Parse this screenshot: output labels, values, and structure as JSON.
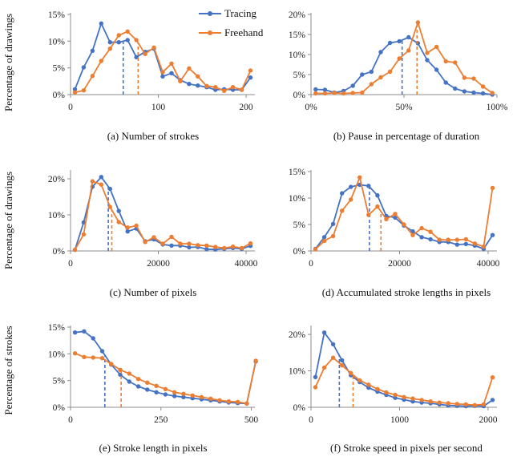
{
  "colors": {
    "tracing": "#4472C4",
    "freehand": "#ED7D31",
    "axis": "#8c8c8c"
  },
  "legend": {
    "tracing": "Tracing",
    "freehand": "Freehand"
  },
  "y_axis_labels": {
    "drawings": "Percentage of drawings",
    "strokes": "Percentage of strokes"
  },
  "chart_data": [
    {
      "type": "line",
      "caption": "(a) Number of strokes",
      "xlim": [
        0,
        210
      ],
      "ylim": [
        0,
        15
      ],
      "xticks": [
        0,
        100,
        200
      ],
      "xtick_labels": [
        "0",
        "100",
        "200"
      ],
      "yticks": [
        0,
        5,
        10,
        15
      ],
      "ytick_labels": [
        "0%",
        "5%",
        "10%",
        "15%"
      ],
      "series": [
        {
          "name": "Tracing",
          "x": [
            5,
            15,
            25,
            35,
            45,
            55,
            65,
            75,
            85,
            95,
            105,
            115,
            125,
            135,
            145,
            155,
            165,
            175,
            185,
            195,
            205
          ],
          "y": [
            1.0,
            5.1,
            8.2,
            13.3,
            9.8,
            9.8,
            10.2,
            7.0,
            8.0,
            8.6,
            3.4,
            4.0,
            2.7,
            2.0,
            1.7,
            1.4,
            0.9,
            1.0,
            0.9,
            0.9,
            3.2
          ],
          "median": 60
        },
        {
          "name": "Freehand",
          "x": [
            5,
            15,
            25,
            35,
            45,
            55,
            65,
            75,
            85,
            95,
            105,
            115,
            125,
            135,
            145,
            155,
            165,
            175,
            185,
            195,
            205
          ],
          "y": [
            0.4,
            0.8,
            3.5,
            6.3,
            8.6,
            11.1,
            11.8,
            10.2,
            7.6,
            8.8,
            4.2,
            5.8,
            2.5,
            4.9,
            3.4,
            1.6,
            1.4,
            0.7,
            1.4,
            0.9,
            4.5
          ],
          "median": 77
        }
      ]
    },
    {
      "type": "line",
      "caption": "(b) Pause in percentage of duration",
      "xlim": [
        0,
        100
      ],
      "ylim": [
        0,
        20
      ],
      "xticks": [
        0,
        50,
        100
      ],
      "xtick_labels": [
        "0%",
        "50%",
        "100%"
      ],
      "yticks": [
        0,
        5,
        10,
        15,
        20
      ],
      "ytick_labels": [
        "0%",
        "5%",
        "10%",
        "15%",
        "20%"
      ],
      "series": [
        {
          "name": "Tracing",
          "x": [
            2.5,
            7.5,
            12.5,
            17.5,
            22.5,
            27.5,
            32.5,
            37.5,
            42.5,
            47.5,
            52.5,
            57.5,
            62.5,
            67.5,
            72.5,
            77.5,
            82.5,
            87.5,
            92.5,
            97.5
          ],
          "y": [
            1.3,
            1.2,
            0.5,
            0.9,
            2.2,
            5.0,
            5.7,
            10.6,
            12.9,
            13.3,
            14.3,
            12.8,
            8.6,
            6.2,
            3.0,
            1.5,
            0.8,
            0.5,
            0.3,
            0.0
          ],
          "median": 49
        },
        {
          "name": "Freehand",
          "x": [
            2.5,
            7.5,
            12.5,
            17.5,
            22.5,
            27.5,
            32.5,
            37.5,
            42.5,
            47.5,
            52.5,
            57.5,
            62.5,
            67.5,
            72.5,
            77.5,
            82.5,
            87.5,
            92.5,
            97.5
          ],
          "y": [
            0.3,
            0.3,
            0.4,
            0.3,
            0.4,
            0.5,
            2.6,
            4.3,
            5.7,
            9.0,
            11.0,
            18.0,
            10.4,
            11.9,
            8.3,
            8.0,
            4.2,
            4.0,
            2.0,
            0.4
          ],
          "median": 57
        }
      ]
    },
    {
      "type": "line",
      "caption": "(c) Number of pixels",
      "xlim": [
        0,
        42000
      ],
      "ylim": [
        0,
        22
      ],
      "xticks": [
        0,
        20000,
        40000
      ],
      "xtick_labels": [
        "0",
        "20000",
        "40000"
      ],
      "yticks": [
        0,
        10,
        20
      ],
      "ytick_labels": [
        "0%",
        "10%",
        "20%"
      ],
      "series": [
        {
          "name": "Tracing",
          "x": [
            1000,
            3000,
            5000,
            7000,
            9000,
            11000,
            13000,
            15000,
            17000,
            19000,
            21000,
            23000,
            25000,
            27000,
            29000,
            31000,
            33000,
            35000,
            37000,
            39000,
            41000
          ],
          "y": [
            0.3,
            7.9,
            17.8,
            20.5,
            17.2,
            11.1,
            5.4,
            6.2,
            2.7,
            3.2,
            1.8,
            1.5,
            1.5,
            1.0,
            1.1,
            0.5,
            0.4,
            0.6,
            0.8,
            0.6,
            1.4
          ],
          "median": 8600
        },
        {
          "name": "Freehand",
          "x": [
            1000,
            3000,
            5000,
            7000,
            9000,
            11000,
            13000,
            15000,
            17000,
            19000,
            21000,
            23000,
            25000,
            27000,
            29000,
            31000,
            33000,
            35000,
            37000,
            39000,
            41000
          ],
          "y": [
            0.3,
            4.6,
            19.3,
            18.4,
            12.2,
            8.0,
            6.5,
            7.0,
            2.5,
            3.8,
            2.0,
            3.9,
            2.0,
            2.0,
            1.6,
            1.5,
            1.1,
            0.8,
            1.2,
            0.8,
            2.1
          ],
          "median": 9400
        }
      ]
    },
    {
      "type": "line",
      "caption": "(d) Accumulated stroke lengths in pixels",
      "xlim": [
        0,
        42000
      ],
      "ylim": [
        0,
        15
      ],
      "xticks": [
        0,
        20000,
        40000
      ],
      "xtick_labels": [
        "0",
        "20000",
        "40000"
      ],
      "yticks": [
        0,
        5,
        10,
        15
      ],
      "ytick_labels": [
        "0%",
        "5%",
        "10%",
        "15%"
      ],
      "series": [
        {
          "name": "Tracing",
          "x": [
            1000,
            3000,
            5000,
            7000,
            9000,
            11000,
            13000,
            15000,
            17000,
            19000,
            21000,
            23000,
            25000,
            27000,
            29000,
            31000,
            33000,
            35000,
            37000,
            39000,
            41000
          ],
          "y": [
            0.4,
            2.6,
            5.1,
            10.9,
            12.1,
            12.5,
            12.3,
            10.5,
            6.6,
            6.3,
            4.8,
            3.7,
            2.6,
            2.2,
            1.7,
            1.7,
            1.2,
            1.3,
            1.0,
            0.4,
            3.0
          ],
          "median": 13200
        },
        {
          "name": "Freehand",
          "x": [
            1000,
            3000,
            5000,
            7000,
            9000,
            11000,
            13000,
            15000,
            17000,
            19000,
            21000,
            23000,
            25000,
            27000,
            29000,
            31000,
            33000,
            35000,
            37000,
            39000,
            41000
          ],
          "y": [
            0.3,
            1.9,
            2.8,
            7.6,
            9.7,
            13.9,
            6.8,
            8.4,
            6.0,
            7.0,
            5.0,
            3.0,
            4.3,
            3.6,
            2.1,
            2.1,
            2.1,
            2.2,
            1.4,
            0.8,
            11.9
          ],
          "median": 15800
        }
      ]
    },
    {
      "type": "line",
      "caption": "(e) Stroke length in pixels",
      "xlim": [
        0,
        510
      ],
      "ylim": [
        0,
        15
      ],
      "xticks": [
        0,
        250,
        500
      ],
      "xtick_labels": [
        "0",
        "250",
        "500"
      ],
      "yticks": [
        0,
        5,
        10,
        15
      ],
      "ytick_labels": [
        "0%",
        "5%",
        "10%",
        "15%"
      ],
      "series": [
        {
          "name": "Tracing",
          "x": [
            12.5,
            37.5,
            62.5,
            87.5,
            112.5,
            137.5,
            162.5,
            187.5,
            212.5,
            237.5,
            262.5,
            287.5,
            312.5,
            337.5,
            362.5,
            387.5,
            412.5,
            437.5,
            462.5,
            487.5,
            512.5
          ],
          "y": [
            14.0,
            14.2,
            12.9,
            10.5,
            8.0,
            6.1,
            4.8,
            3.9,
            3.3,
            2.8,
            2.4,
            2.1,
            1.9,
            1.7,
            1.5,
            1.3,
            1.1,
            0.9,
            0.8,
            0.7,
            8.6
          ],
          "median": 95
        },
        {
          "name": "Freehand",
          "x": [
            12.5,
            37.5,
            62.5,
            87.5,
            112.5,
            137.5,
            162.5,
            187.5,
            212.5,
            237.5,
            262.5,
            287.5,
            312.5,
            337.5,
            362.5,
            387.5,
            412.5,
            437.5,
            462.5,
            487.5,
            512.5
          ],
          "y": [
            10.1,
            9.4,
            9.3,
            9.2,
            8.1,
            7.0,
            6.3,
            5.3,
            4.6,
            4.0,
            3.4,
            2.8,
            2.5,
            2.2,
            1.9,
            1.6,
            1.3,
            1.1,
            1.0,
            0.7,
            8.7
          ],
          "median": 140
        }
      ]
    },
    {
      "type": "line",
      "caption": "(f) Stroke speed in pixels per second",
      "xlim": [
        0,
        2100
      ],
      "ylim": [
        0,
        22
      ],
      "xticks": [
        0,
        1000,
        2000
      ],
      "xtick_labels": [
        "0",
        "1000",
        "2000"
      ],
      "yticks": [
        0,
        10,
        20
      ],
      "ytick_labels": [
        "0%",
        "10%",
        "20%"
      ],
      "series": [
        {
          "name": "Tracing",
          "x": [
            50,
            150,
            250,
            350,
            450,
            550,
            650,
            750,
            850,
            950,
            1050,
            1150,
            1250,
            1350,
            1450,
            1550,
            1650,
            1750,
            1850,
            1950,
            2050
          ],
          "y": [
            8.3,
            20.5,
            17.3,
            12.9,
            8.8,
            6.9,
            5.4,
            4.3,
            3.4,
            2.6,
            2.1,
            1.6,
            1.3,
            1.1,
            0.8,
            0.5,
            0.4,
            0.3,
            0.4,
            0.3,
            2.0
          ],
          "median": 320
        },
        {
          "name": "Freehand",
          "x": [
            50,
            150,
            250,
            350,
            450,
            550,
            650,
            750,
            850,
            950,
            1050,
            1150,
            1250,
            1350,
            1450,
            1550,
            1650,
            1750,
            1850,
            1950,
            2050
          ],
          "y": [
            5.5,
            10.9,
            13.6,
            11.5,
            9.4,
            7.4,
            6.2,
            5.0,
            4.1,
            3.4,
            2.8,
            2.4,
            2.0,
            1.6,
            1.3,
            1.1,
            0.9,
            0.8,
            0.6,
            0.8,
            8.2
          ],
          "median": 475
        }
      ]
    }
  ]
}
